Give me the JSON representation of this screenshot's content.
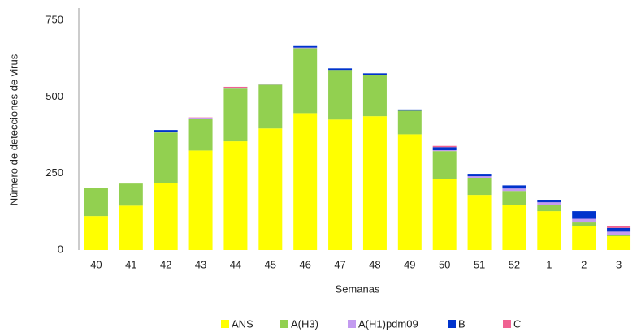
{
  "chart_data": {
    "type": "bar",
    "stacked": true,
    "y_label": "Número de detecciones de virus",
    "x_label": "Semanas",
    "categories": [
      "40",
      "41",
      "42",
      "43",
      "44",
      "45",
      "46",
      "47",
      "48",
      "49",
      "50",
      "51",
      "52",
      "1",
      "2",
      "3"
    ],
    "series": [
      {
        "name": "ANS",
        "color": "#ffff00",
        "values": [
          111,
          145,
          220,
          325,
          355,
          397,
          447,
          426,
          437,
          378,
          233,
          180,
          146,
          127,
          77,
          45
        ]
      },
      {
        "name": "A(H3)",
        "color": "#92d050",
        "values": [
          93,
          72,
          164,
          104,
          172,
          143,
          212,
          162,
          135,
          77,
          90,
          56,
          47,
          21,
          13,
          5
        ]
      },
      {
        "name": "A(H1)pdm09",
        "color": "#c39bf0",
        "values": [
          0,
          0,
          3,
          3,
          3,
          3,
          2,
          0,
          0,
          0,
          3,
          5,
          8,
          8,
          12,
          10
        ]
      },
      {
        "name": "B",
        "color": "#0033cc",
        "values": [
          0,
          0,
          5,
          0,
          0,
          0,
          5,
          5,
          5,
          4,
          10,
          8,
          10,
          7,
          25,
          12
        ]
      },
      {
        "name": "C",
        "color": "#f06292",
        "values": [
          0,
          0,
          0,
          1,
          3,
          0,
          0,
          0,
          0,
          0,
          4,
          0,
          0,
          0,
          0,
          5
        ]
      }
    ],
    "ylim": [
      0,
      790
    ],
    "yticks": [
      0,
      250,
      500,
      750
    ],
    "grid": false
  }
}
